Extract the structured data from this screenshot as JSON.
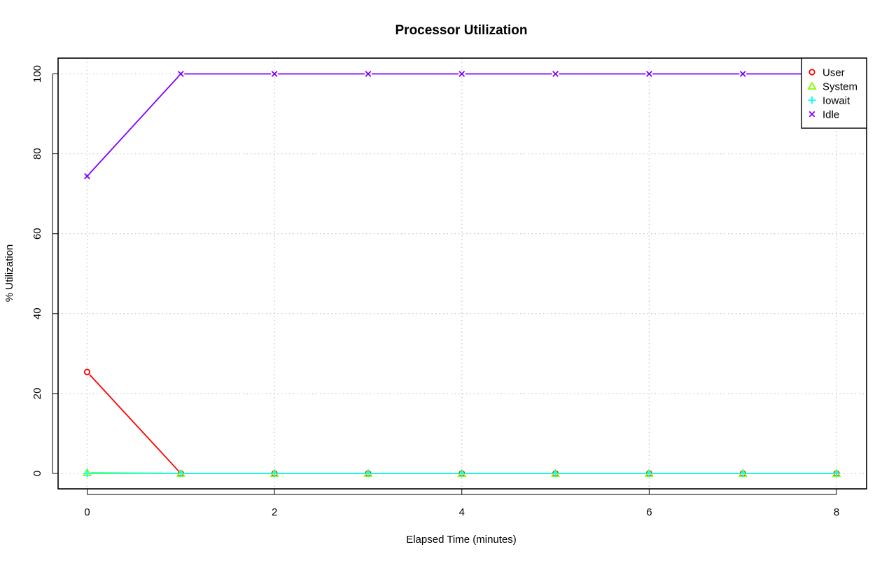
{
  "chart_data": {
    "type": "line",
    "title": "Processor Utilization",
    "xlabel": "Elapsed Time (minutes)",
    "ylabel": "% Utilization",
    "xlim": [
      0,
      8
    ],
    "ylim": [
      0,
      100
    ],
    "x_ticks": [
      "0",
      "2",
      "4",
      "6",
      "8"
    ],
    "y_ticks": [
      "0",
      "20",
      "40",
      "60",
      "80",
      "100"
    ],
    "grid": true,
    "legend_position": "top-right",
    "x": [
      0,
      1,
      2,
      3,
      4,
      5,
      6,
      7,
      8
    ],
    "series": [
      {
        "name": "User",
        "color": "#ff0000",
        "marker": "circle",
        "values": [
          25.4,
          0,
          0,
          0,
          0,
          0,
          0,
          0,
          0
        ]
      },
      {
        "name": "System",
        "color": "#80ff00",
        "marker": "triangle",
        "values": [
          0.2,
          0,
          0,
          0,
          0,
          0,
          0,
          0,
          0
        ]
      },
      {
        "name": "Iowait",
        "color": "#00ffff",
        "marker": "plus",
        "values": [
          0,
          0,
          0,
          0,
          0,
          0,
          0,
          0,
          0
        ]
      },
      {
        "name": "Idle",
        "color": "#8000ff",
        "marker": "cross",
        "values": [
          74.4,
          100,
          100,
          100,
          100,
          100,
          100,
          100,
          100
        ]
      }
    ]
  }
}
